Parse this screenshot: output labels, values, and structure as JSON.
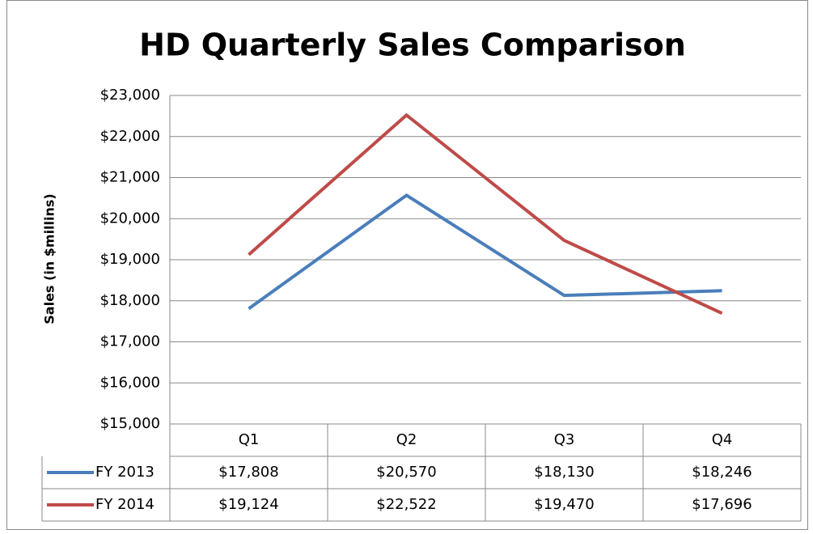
{
  "chart_data": {
    "type": "line",
    "title": "HD Quarterly Sales Comparison",
    "y_label": "Sales (in $millins)",
    "categories": [
      "Q1",
      "Q2",
      "Q3",
      "Q4"
    ],
    "series": [
      {
        "name": "FY 2013",
        "color": "#4a7ebb",
        "values": [
          17808,
          20570,
          18130,
          18246
        ],
        "value_labels": [
          "$17,808",
          "$20,570",
          "$18,130",
          "$18,246"
        ]
      },
      {
        "name": "FY 2014",
        "color": "#be4b48",
        "values": [
          19124,
          22522,
          19470,
          17696
        ],
        "value_labels": [
          "$19,124",
          "$22,522",
          "$19,470",
          "$17,696"
        ]
      }
    ],
    "ylim": [
      15000,
      23000
    ],
    "yticks": [
      {
        "value": 15000,
        "label": "$15,000"
      },
      {
        "value": 16000,
        "label": "$16,000"
      },
      {
        "value": 17000,
        "label": "$17,000"
      },
      {
        "value": 18000,
        "label": "$18,000"
      },
      {
        "value": 19000,
        "label": "$19,000"
      },
      {
        "value": 20000,
        "label": "$20,000"
      },
      {
        "value": 21000,
        "label": "$21,000"
      },
      {
        "value": 22000,
        "label": "$22,000"
      },
      {
        "value": 23000,
        "label": "$23,000"
      }
    ],
    "grid": true,
    "data_table": true
  }
}
